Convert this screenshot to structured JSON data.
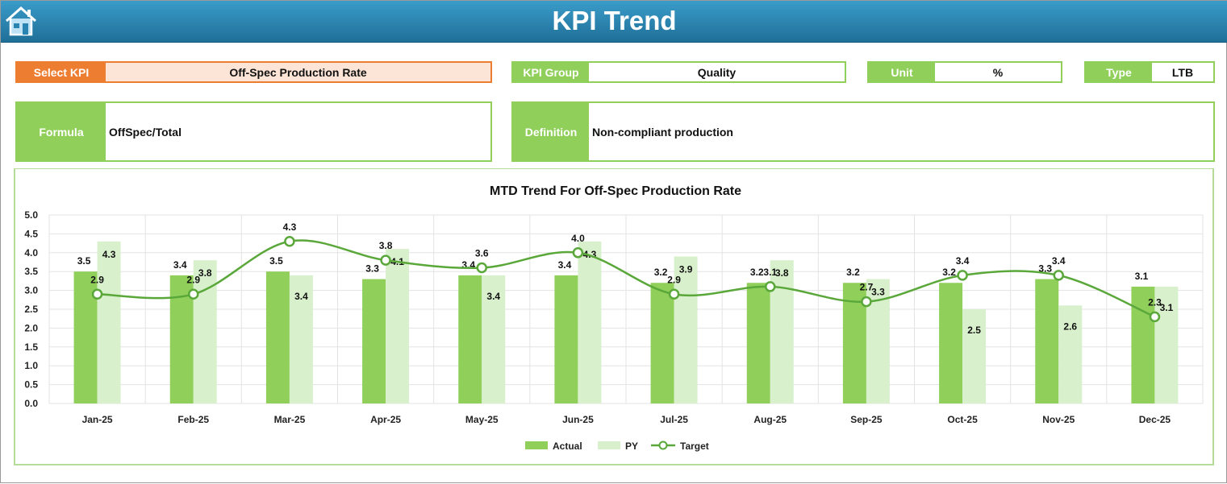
{
  "header": {
    "title": "KPI Trend",
    "home_icon": "home-icon"
  },
  "filters": {
    "select_kpi_label": "Select KPI",
    "select_kpi_value": "Off-Spec Production Rate",
    "kpi_group_label": "KPI Group",
    "kpi_group_value": "Quality",
    "unit_label": "Unit",
    "unit_value": "%",
    "type_label": "Type",
    "type_value": "LTB",
    "formula_label": "Formula",
    "formula_value": "OffSpec/Total",
    "definition_label": "Definition",
    "definition_value": "Non-compliant production"
  },
  "colors": {
    "accent_orange": "#ed7d31",
    "green": "#8fcf5a",
    "light_green": "#d9f0cd",
    "line": "#5aa73a",
    "header_blue": "#2a84b2"
  },
  "chart_data": {
    "type": "bar",
    "title": "MTD Trend For Off-Spec Production Rate",
    "categories": [
      "Jan-25",
      "Feb-25",
      "Mar-25",
      "Apr-25",
      "May-25",
      "Jun-25",
      "Jul-25",
      "Aug-25",
      "Sep-25",
      "Oct-25",
      "Nov-25",
      "Dec-25"
    ],
    "ylim": [
      0,
      5
    ],
    "yticks": [
      "0.0",
      "0.5",
      "1.0",
      "1.5",
      "2.0",
      "2.5",
      "3.0",
      "3.5",
      "4.0",
      "4.5",
      "5.0"
    ],
    "grid": true,
    "legend": "bottom",
    "series": [
      {
        "name": "Actual",
        "kind": "bar",
        "values": [
          3.5,
          3.4,
          3.5,
          3.3,
          3.4,
          3.4,
          3.2,
          3.2,
          3.2,
          3.2,
          3.3,
          3.1
        ]
      },
      {
        "name": "PY",
        "kind": "bar",
        "values": [
          4.3,
          3.8,
          3.4,
          4.1,
          3.4,
          4.3,
          3.9,
          3.8,
          3.3,
          2.5,
          2.6,
          3.1
        ]
      },
      {
        "name": "Target",
        "kind": "line",
        "values": [
          2.9,
          2.9,
          4.3,
          3.8,
          3.6,
          4.0,
          2.9,
          3.1,
          2.7,
          3.4,
          3.4,
          2.3
        ]
      }
    ]
  }
}
